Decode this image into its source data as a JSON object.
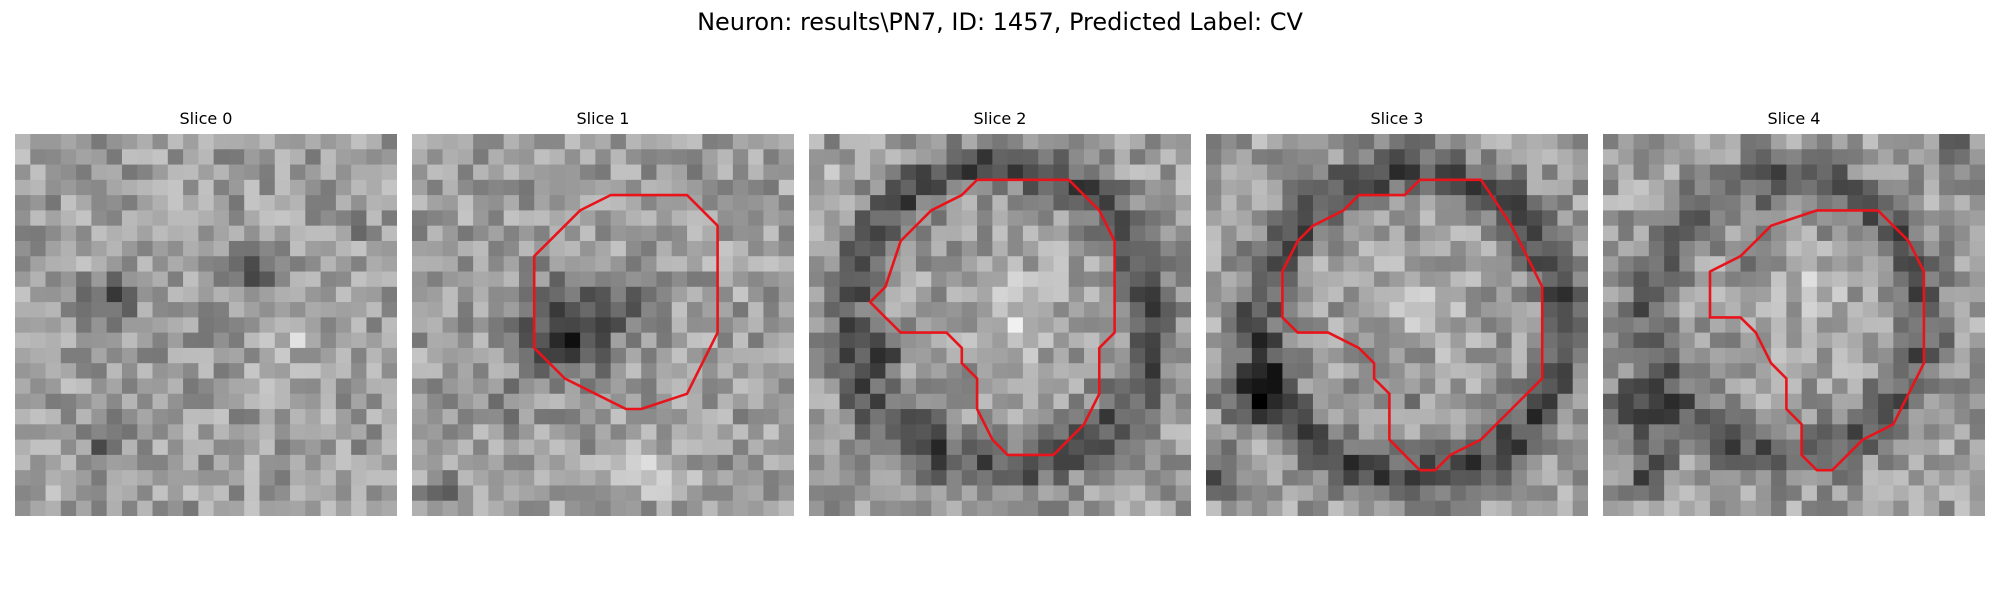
{
  "figure": {
    "title": "Neuron: results\\PN7, ID: 1457, Predicted Label: CV"
  },
  "slices": [
    {
      "title": "Slice 0",
      "has_contour": false
    },
    {
      "title": "Slice 1",
      "has_contour": true
    },
    {
      "title": "Slice 2",
      "has_contour": true
    },
    {
      "title": "Slice 3",
      "has_contour": true
    },
    {
      "title": "Slice 4",
      "has_contour": true
    }
  ],
  "colors": {
    "contour": "#e8141c",
    "background": "#ffffff"
  }
}
